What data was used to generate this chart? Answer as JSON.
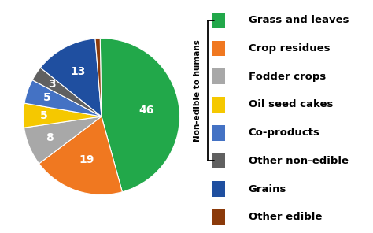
{
  "labels": [
    "Grass and leaves",
    "Crop residues",
    "Fodder crops",
    "Oil seed cakes",
    "Co-products",
    "Other non-edible",
    "Grains",
    "Other edible"
  ],
  "values": [
    46,
    19,
    8,
    5,
    5,
    3,
    13,
    1
  ],
  "colors": [
    "#22a84a",
    "#f07820",
    "#a8a8a8",
    "#f5c800",
    "#4472c4",
    "#606060",
    "#1f4fa0",
    "#8B3a0a"
  ],
  "text_color": "#ffffff",
  "label_fontsize": 10,
  "legend_fontsize": 9.5,
  "bracket_label": "Non-edible to humans",
  "startangle": 91,
  "counterclock": false
}
